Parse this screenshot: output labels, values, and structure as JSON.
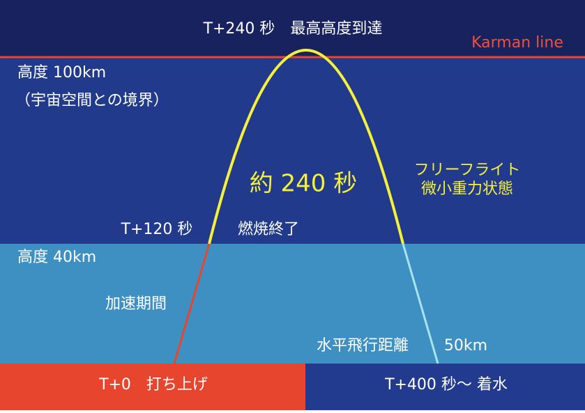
{
  "top_label": "T+240 秒　最高高度到達",
  "karman_label": "Karman line",
  "altitude_100": "高度 100km",
  "altitude_100_note": "（宇宙空間との境界）",
  "duration": "約 240 秒",
  "free_flight": "フリーフライト",
  "microgravity": "微小重力状態",
  "burnout_time": "T+120 秒",
  "burnout": "燃焼終了",
  "altitude_40": "高度 40km",
  "acceleration": "加速期間",
  "horizontal_distance": "水平飛行距離",
  "distance_value": "50km",
  "launch": "T+0　打ち上げ",
  "splashdown": "T+400 秒〜 着水"
}
